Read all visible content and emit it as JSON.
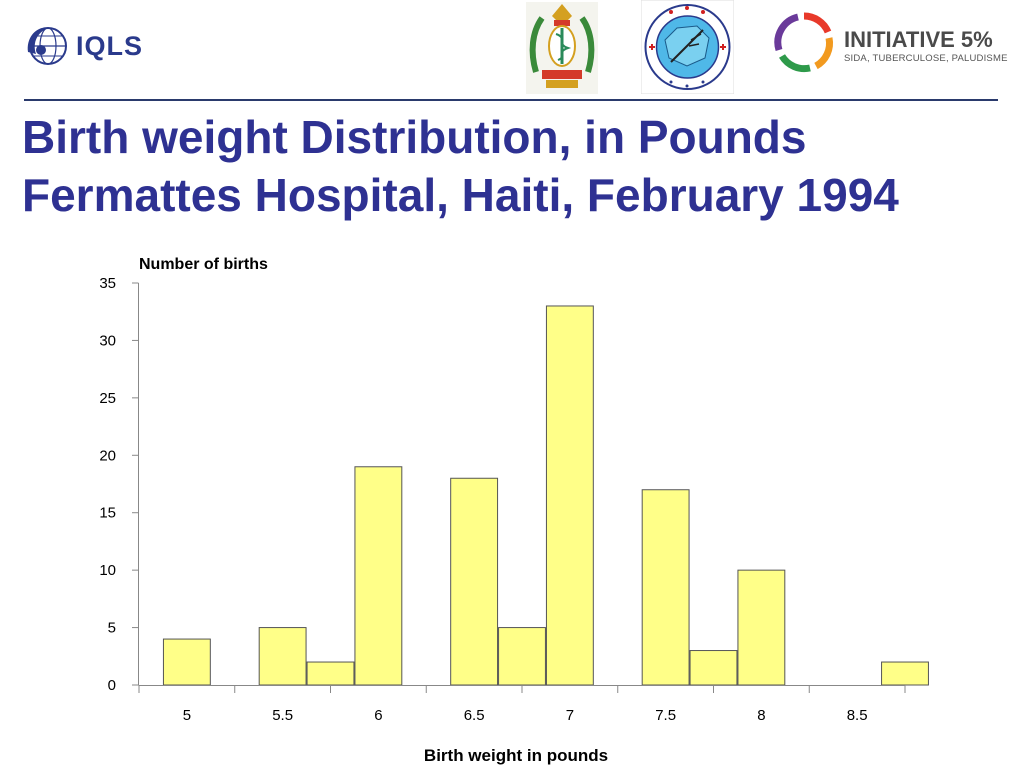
{
  "header": {
    "logos": {
      "iqls": {
        "icon": "iqls-globe-icon",
        "text": "IQLS"
      },
      "emblem": {
        "icon": "ministry-of-health-emblem"
      },
      "cnm": {
        "icon": "cnm-seal-logo"
      },
      "initiative": {
        "icon": "initiative-5-ring-icon",
        "title": "INITIATIVE 5%",
        "subtitle": "SIDA, TUBERCULOSE, PALUDISME"
      }
    },
    "colors": {
      "title": "#2e3192",
      "rule": "#2a3a6c"
    }
  },
  "title": {
    "line1": "Birth weight Distribution, in Pounds",
    "line2": "Fermattes Hospital, Haiti, February 1994"
  },
  "chart_data": {
    "type": "bar",
    "title": "",
    "ylabel": "Number of births",
    "xlabel": "Birth weight in pounds",
    "ylim": [
      0,
      35
    ],
    "yticks": [
      0,
      5,
      10,
      15,
      20,
      25,
      30,
      35
    ],
    "xlim": [
      4.75,
      8.75
    ],
    "xticks": [
      5,
      5.5,
      6,
      6.5,
      7,
      7.5,
      8,
      8.5
    ],
    "bin_width": 0.25,
    "x": [
      5.0,
      5.25,
      5.5,
      5.75,
      6.0,
      6.25,
      6.5,
      6.75,
      7.0,
      7.25,
      7.5,
      7.75,
      8.0,
      8.25,
      8.5,
      8.75
    ],
    "values": [
      4,
      0,
      5,
      2,
      19,
      0,
      18,
      5,
      33,
      0,
      17,
      3,
      10,
      0,
      0,
      2
    ],
    "bar_color": "#ffff88",
    "bar_edge_color": "#555555",
    "grid": false,
    "legend": "none"
  }
}
